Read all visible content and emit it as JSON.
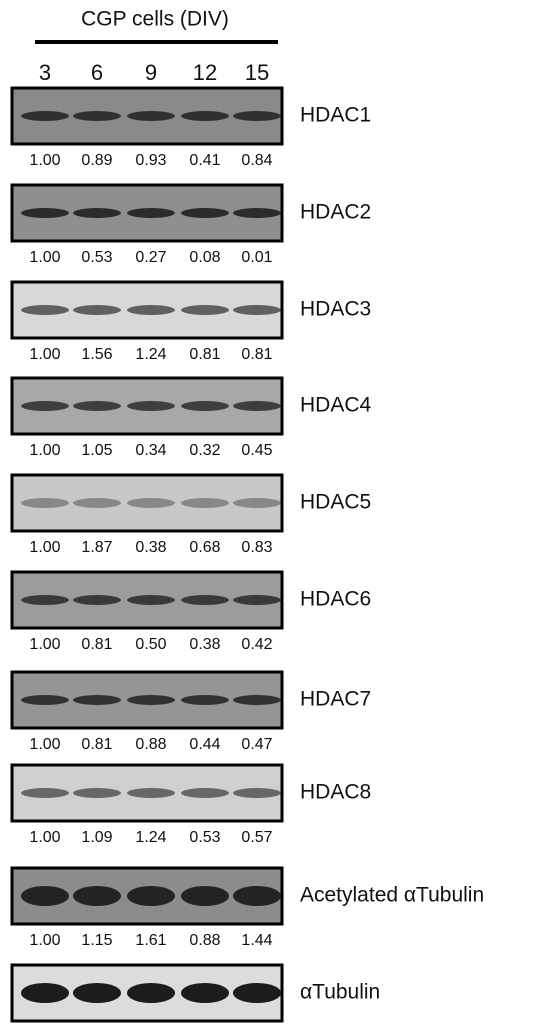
{
  "header": {
    "title": "CGP cells (DIV)"
  },
  "lanes": [
    "3",
    "6",
    "9",
    "12",
    "15"
  ],
  "blots": [
    {
      "label": "HDAC1",
      "values": [
        "1.00",
        "0.89",
        "0.93",
        "0.41",
        "0.84"
      ]
    },
    {
      "label": "HDAC2",
      "values": [
        "1.00",
        "0.53",
        "0.27",
        "0.08",
        "0.01"
      ]
    },
    {
      "label": "HDAC3",
      "values": [
        "1.00",
        "1.56",
        "1.24",
        "0.81",
        "0.81"
      ]
    },
    {
      "label": "HDAC4",
      "values": [
        "1.00",
        "1.05",
        "0.34",
        "0.32",
        "0.45"
      ]
    },
    {
      "label": "HDAC5",
      "values": [
        "1.00",
        "1.87",
        "0.38",
        "0.68",
        "0.83"
      ]
    },
    {
      "label": "HDAC6",
      "values": [
        "1.00",
        "0.81",
        "0.50",
        "0.38",
        "0.42"
      ]
    },
    {
      "label": "HDAC7",
      "values": [
        "1.00",
        "0.81",
        "0.88",
        "0.44",
        "0.47"
      ]
    },
    {
      "label": "HDAC8",
      "values": [
        "1.00",
        "1.09",
        "1.24",
        "0.53",
        "0.57"
      ]
    },
    {
      "label": "Acetylated αTubulin",
      "values": [
        "1.00",
        "1.15",
        "1.61",
        "0.88",
        "1.44"
      ]
    },
    {
      "label": "αTubulin"
    }
  ]
}
